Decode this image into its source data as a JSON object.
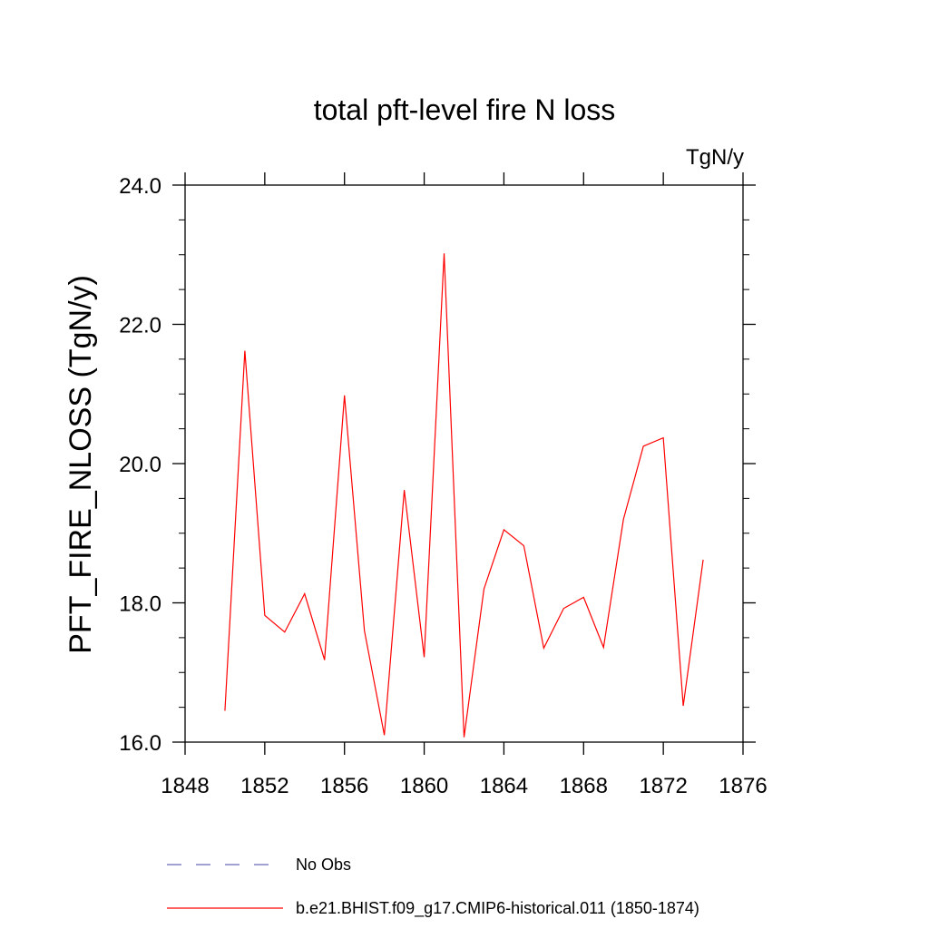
{
  "chart_data": {
    "type": "line",
    "title": "total pft-level fire N loss",
    "units_label": "TgN/y",
    "ylabel": "PFT_FIRE_NLOSS  (TgN/y)",
    "xlabel": "",
    "xlim": [
      1848,
      1876
    ],
    "ylim": [
      16.0,
      24.0
    ],
    "x_ticks": [
      1848,
      1852,
      1856,
      1860,
      1864,
      1868,
      1872,
      1876
    ],
    "x_tick_labels": [
      "1848",
      "1852",
      "1856",
      "1860",
      "1864",
      "1868",
      "1872",
      "1876"
    ],
    "y_ticks": [
      16.0,
      18.0,
      20.0,
      22.0,
      24.0
    ],
    "y_tick_labels": [
      "16.0",
      "18.0",
      "20.0",
      "22.0",
      "24.0"
    ],
    "grid": false,
    "legend_position": "bottom",
    "series": [
      {
        "name": "b.e21.BHIST.f09_g17.CMIP6-historical.011 (1850-1874)",
        "color": "#ff0000",
        "style": "solid",
        "x": [
          1850,
          1851,
          1852,
          1853,
          1854,
          1855,
          1856,
          1857,
          1858,
          1859,
          1860,
          1861,
          1862,
          1863,
          1864,
          1865,
          1866,
          1867,
          1868,
          1869,
          1870,
          1871,
          1872,
          1873,
          1874
        ],
        "y": [
          16.45,
          21.62,
          17.82,
          17.58,
          18.13,
          17.18,
          20.98,
          17.6,
          16.1,
          19.62,
          17.22,
          23.02,
          16.07,
          18.2,
          19.05,
          18.82,
          17.35,
          17.92,
          18.08,
          17.36,
          19.2,
          20.25,
          20.37,
          16.52,
          18.62
        ]
      }
    ],
    "legend": [
      {
        "label": "No Obs",
        "color": "#6b6bb8",
        "style": "dashed"
      },
      {
        "label": "b.e21.BHIST.f09_g17.CMIP6-historical.011 (1850-1874)",
        "color": "#ff0000",
        "style": "solid"
      }
    ]
  }
}
